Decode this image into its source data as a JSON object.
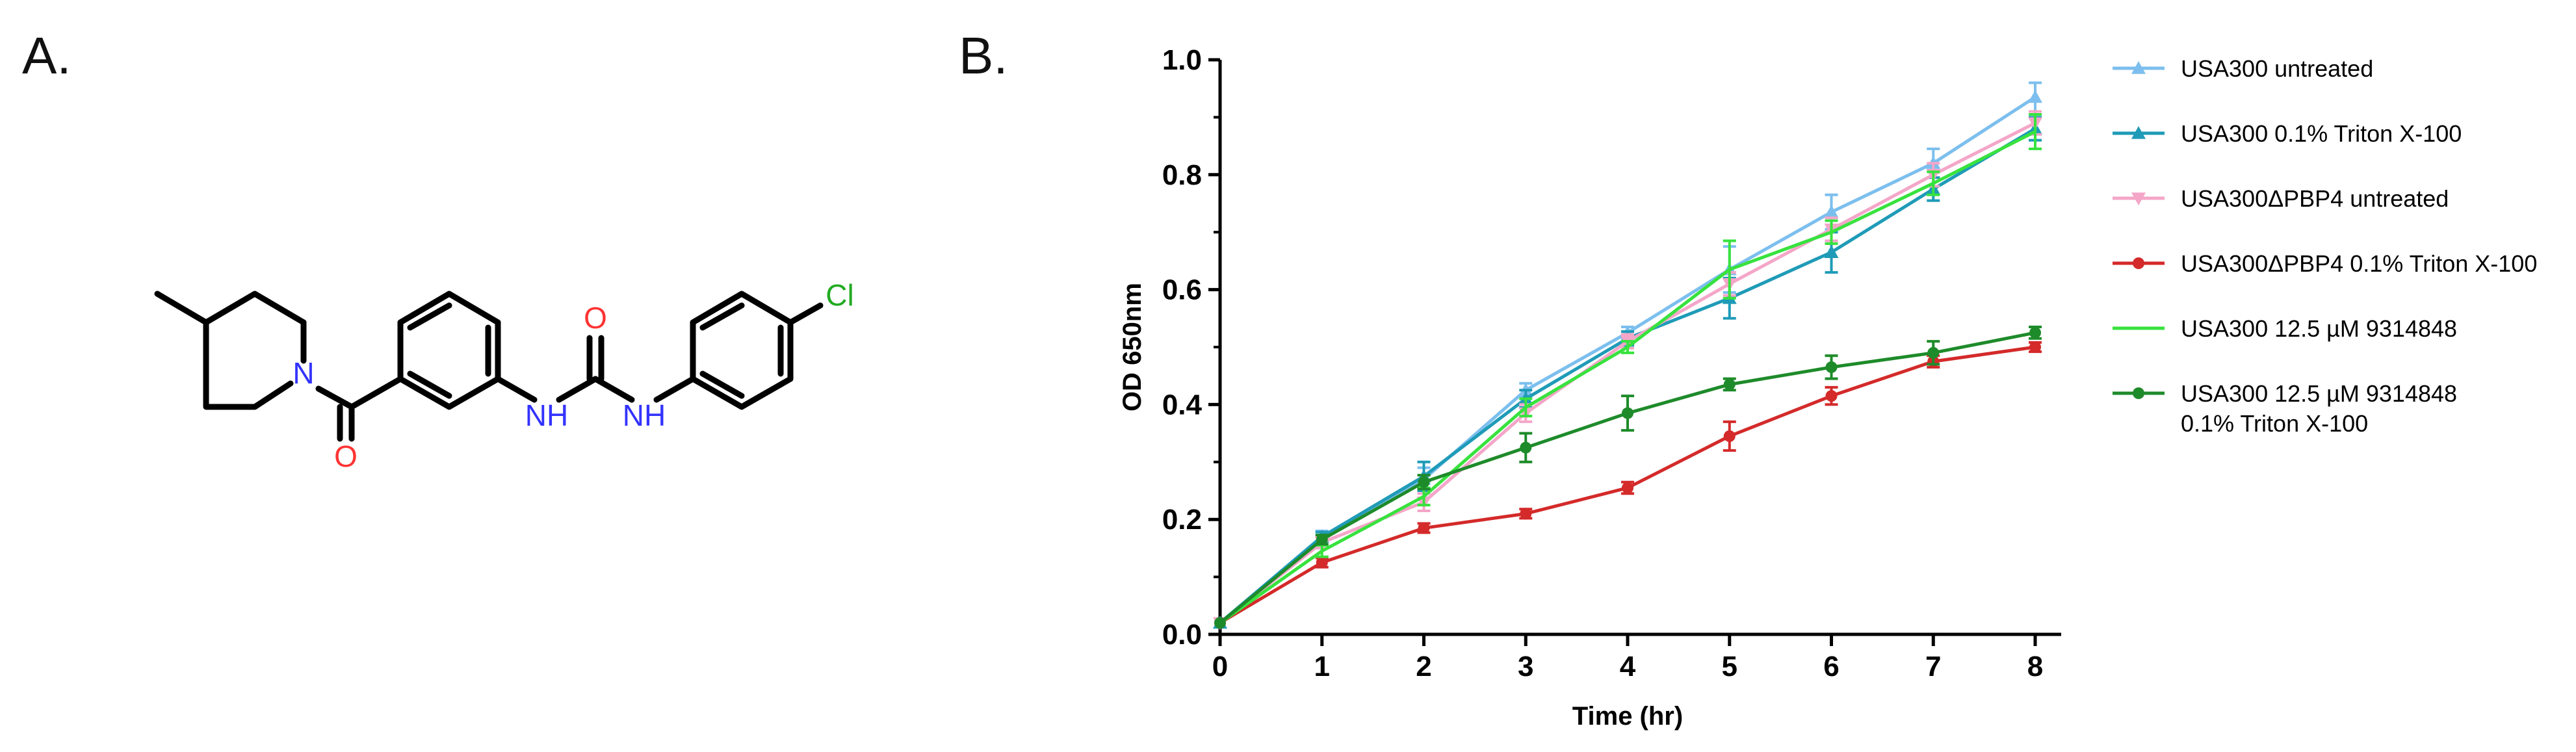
{
  "panel_a": {
    "letter": "A.",
    "atoms": {
      "nitrogen": "N",
      "oxygen_amide": "O",
      "oxygen_urea": "O",
      "nh_left": "NH",
      "nh_right": "NH",
      "chlorine": "Cl"
    },
    "colors": {
      "bond": "#000000",
      "N": "#3333ff",
      "O": "#ff3333",
      "Cl": "#22aa22"
    }
  },
  "panel_b": {
    "letter": "B."
  },
  "chart_data": {
    "type": "line",
    "title": "",
    "xlabel": "Time (hr)",
    "ylabel": "OD 650nm",
    "xlim": [
      0,
      8
    ],
    "ylim": [
      0.0,
      1.0
    ],
    "x": [
      0,
      1,
      2,
      3,
      4,
      5,
      6,
      7,
      8
    ],
    "x_tick_labels": [
      "0",
      "1",
      "2",
      "3",
      "4",
      "5",
      "6",
      "7",
      "8"
    ],
    "y_tick_labels": [
      "0.0",
      "0.2",
      "0.4",
      "0.6",
      "0.8",
      "1.0"
    ],
    "y_ticks": [
      0.0,
      0.2,
      0.4,
      0.6,
      0.8,
      1.0
    ],
    "legend_position": "right",
    "series": [
      {
        "name": "USA300 untreated",
        "label_lines": [
          "USA300 untreated"
        ],
        "color": "#7cbfee",
        "marker": "triangle-up",
        "values": [
          0.02,
          0.17,
          0.27,
          0.425,
          0.525,
          0.635,
          0.735,
          0.82,
          0.935
        ],
        "errors": [
          0.005,
          0.01,
          0.02,
          0.012,
          0.01,
          0.04,
          0.03,
          0.025,
          0.025
        ]
      },
      {
        "name": "USA300 0.1% Triton X-100",
        "label_lines": [
          "USA300 0.1% Triton X-100"
        ],
        "color": "#1f9bb7",
        "marker": "triangle-up",
        "values": [
          0.02,
          0.17,
          0.275,
          0.41,
          0.515,
          0.585,
          0.665,
          0.775,
          0.88
        ],
        "errors": [
          0.005,
          0.008,
          0.025,
          0.015,
          0.012,
          0.035,
          0.035,
          0.02,
          0.02
        ]
      },
      {
        "name": "USA300ΔPBP4 untreated",
        "label_lines": [
          "USA300ΔPBP4 untreated"
        ],
        "color": "#f4a6c8",
        "marker": "triangle-down",
        "values": [
          0.02,
          0.16,
          0.23,
          0.385,
          0.51,
          0.61,
          0.705,
          0.8,
          0.89
        ],
        "errors": [
          0.005,
          0.01,
          0.015,
          0.015,
          0.012,
          0.02,
          0.02,
          0.02,
          0.02
        ]
      },
      {
        "name": "USA300ΔPBP4 0.1% Triton X-100",
        "label_lines": [
          "USA300ΔPBP4 0.1% Triton X-100"
        ],
        "color": "#d42a2a",
        "marker": "circle",
        "values": [
          0.02,
          0.125,
          0.185,
          0.21,
          0.255,
          0.345,
          0.415,
          0.475,
          0.5
        ],
        "errors": [
          0.005,
          0.008,
          0.008,
          0.008,
          0.01,
          0.025,
          0.015,
          0.01,
          0.008
        ]
      },
      {
        "name": "USA300 12.5 µM 9314848",
        "label_lines": [
          "USA300 12.5 µM 9314848"
        ],
        "color": "#38e23e",
        "marker": "none",
        "values": [
          0.02,
          0.145,
          0.24,
          0.395,
          0.5,
          0.635,
          0.7,
          0.785,
          0.875
        ],
        "errors": [
          0.005,
          0.01,
          0.015,
          0.015,
          0.01,
          0.05,
          0.02,
          0.02,
          0.03
        ]
      },
      {
        "name": "USA300 12.5 µM 9314848 0.1% Triton X-100",
        "label_lines": [
          "USA300 12.5 µM 9314848",
          "0.1% Triton X-100"
        ],
        "color": "#1e8b2a",
        "marker": "circle",
        "values": [
          0.02,
          0.165,
          0.265,
          0.325,
          0.385,
          0.435,
          0.465,
          0.49,
          0.525
        ],
        "errors": [
          0.005,
          0.008,
          0.012,
          0.025,
          0.03,
          0.01,
          0.02,
          0.02,
          0.01
        ]
      }
    ]
  }
}
